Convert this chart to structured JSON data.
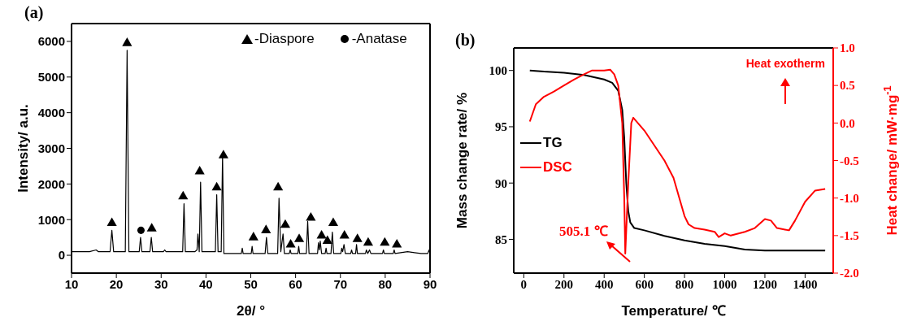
{
  "chart_data": [
    {
      "type": "line",
      "title": "(a)",
      "xlabel": "2θ/ °",
      "ylabel": "Intensity/ a.u.",
      "xlim": [
        10,
        90
      ],
      "xticks": [
        10,
        20,
        30,
        40,
        50,
        60,
        70,
        80,
        90
      ],
      "ylim": [
        -500,
        6500
      ],
      "yticks": [
        0,
        1000,
        2000,
        3000,
        4000,
        5000,
        6000
      ],
      "legend": "top right",
      "series": [
        {
          "color": "#000000",
          "x": [
            10,
            12,
            14,
            15.5,
            16,
            18.6,
            19.0,
            19.4,
            22.0,
            22.4,
            22.8,
            25.1,
            25.4,
            25.7,
            27.5,
            27.8,
            28.1,
            30.5,
            30.8,
            31.1,
            34.8,
            35.1,
            35.4,
            37.5,
            38.0,
            38.2,
            38.5,
            38.8,
            39.1,
            42.1,
            42.4,
            42.7,
            43.4,
            43.7,
            44.0,
            47.9,
            48.1,
            48.3,
            50.1,
            50.3,
            50.5,
            53.2,
            53.5,
            53.8,
            56.0,
            56.3,
            56.7,
            57.2,
            57.5,
            58.6,
            58.8,
            59.0,
            60.5,
            60.7,
            60.9,
            62.4,
            62.7,
            63.0,
            64.9,
            65.1,
            65.3,
            65.5,
            65.8,
            66.6,
            66.8,
            67.0,
            67.9,
            68.2,
            68.5,
            70.1,
            70.3,
            70.5,
            70.8,
            71.1,
            72.3,
            72.5,
            72.7,
            73.4,
            73.6,
            73.8,
            75.6,
            75.8,
            76.1,
            76.5,
            76.8,
            79.4,
            79.6,
            79.8,
            81.8,
            82.0,
            82.2,
            85,
            88,
            89.5,
            89.8,
            90
          ],
          "values": [
            100,
            100,
            100,
            150,
            100,
            100,
            700,
            100,
            100,
            5750,
            100,
            100,
            500,
            100,
            100,
            500,
            100,
            100,
            150,
            100,
            100,
            1450,
            100,
            100,
            150,
            600,
            100,
            2050,
            100,
            100,
            1700,
            100,
            100,
            2800,
            50,
            50,
            200,
            50,
            50,
            250,
            50,
            50,
            500,
            50,
            50,
            1600,
            100,
            600,
            50,
            50,
            150,
            50,
            50,
            250,
            50,
            50,
            950,
            50,
            50,
            350,
            150,
            400,
            50,
            50,
            200,
            50,
            50,
            650,
            50,
            50,
            200,
            100,
            300,
            50,
            50,
            150,
            50,
            50,
            300,
            50,
            50,
            150,
            50,
            150,
            50,
            50,
            150,
            50,
            50,
            150,
            50,
            100,
            50,
            50,
            150,
            50
          ]
        },
        {
          "type": "scatter",
          "name": "-Diaspore",
          "marker": "triangle",
          "color": "#000000",
          "x": [
            19.0,
            22.4,
            27.9,
            34.9,
            38.6,
            42.4,
            43.9,
            50.6,
            53.4,
            56.1,
            57.7,
            58.9,
            60.8,
            63.4,
            65.8,
            67.1,
            68.4,
            70.9,
            73.8,
            76.2,
            79.9,
            82.6
          ],
          "values": [
            900,
            5950,
            750,
            1650,
            2350,
            1900,
            2800,
            500,
            700,
            1900,
            850,
            300,
            450,
            1050,
            550,
            400,
            900,
            550,
            450,
            350,
            350,
            300
          ]
        },
        {
          "type": "scatter",
          "name": "-Anatase",
          "marker": "circle",
          "color": "#000000",
          "x": [
            25.5
          ],
          "values": [
            700
          ]
        }
      ]
    },
    {
      "type": "line",
      "title": "(b)",
      "xlabel": "Temperature/ ℃",
      "ylabel": "Mass change rate/ %",
      "y2label": "Heat change/ mW·mg$^{-1}$",
      "xlim": [
        -50,
        1540
      ],
      "xticks": [
        0,
        200,
        400,
        600,
        800,
        1000,
        1200,
        1400
      ],
      "ylim": [
        82,
        102
      ],
      "yticks": [
        85,
        90,
        95,
        100
      ],
      "y2lim": [
        -2,
        1
      ],
      "y2ticks": [
        {
          "value": -2,
          "label": "-2.0"
        },
        {
          "value": -1.5,
          "label": "-1.5"
        },
        {
          "value": -1,
          "label": "-1.0"
        },
        {
          "value": -0.5,
          "label": "-0.5"
        },
        {
          "value": 0,
          "label": "0.0"
        },
        {
          "value": 0.5,
          "label": "0.5"
        },
        {
          "value": 1,
          "label": "1.0"
        }
      ],
      "legend": "left",
      "annotations": [
        "505.1 ℃",
        "Heat exotherm"
      ],
      "series": [
        {
          "name": "TG",
          "color": "#000000",
          "x": [
            30,
            100,
            200,
            300,
            400,
            440,
            470,
            490,
            500,
            510,
            520,
            530,
            550,
            600,
            700,
            800,
            900,
            1000,
            1100,
            1200,
            1300,
            1400,
            1500
          ],
          "values": [
            100.0,
            99.9,
            99.8,
            99.6,
            99.2,
            98.9,
            98.2,
            96.5,
            94,
            90,
            87.5,
            86.5,
            86,
            85.8,
            85.3,
            84.9,
            84.6,
            84.4,
            84.1,
            84,
            84.0,
            84.0,
            84
          ]
        },
        {
          "name": "DSC",
          "color": "#ff0000",
          "axis": "y2",
          "x": [
            30,
            60,
            100,
            150,
            200,
            250,
            300,
            340,
            400,
            430,
            450,
            470,
            490,
            500,
            505.1,
            520,
            535,
            545,
            600,
            650,
            700,
            745,
            800,
            820,
            850,
            900,
            950,
            970,
            1000,
            1030,
            1100,
            1150,
            1200,
            1230,
            1260,
            1300,
            1320,
            1350,
            1400,
            1450,
            1500
          ],
          "values": [
            0.02,
            0.25,
            0.35,
            0.42,
            0.5,
            0.58,
            0.65,
            0.7,
            0.7,
            0.71,
            0.65,
            0.5,
            0,
            -1.0,
            -1.74,
            -0.8,
            0,
            0.07,
            -0.1,
            -0.3,
            -0.5,
            -0.73,
            -1.24,
            -1.35,
            -1.4,
            -1.42,
            -1.45,
            -1.52,
            -1.47,
            -1.5,
            -1.45,
            -1.4,
            -1.28,
            -1.3,
            -1.4,
            -1.42,
            -1.43,
            -1.3,
            -1.05,
            -0.9,
            -0.88
          ]
        }
      ]
    }
  ]
}
